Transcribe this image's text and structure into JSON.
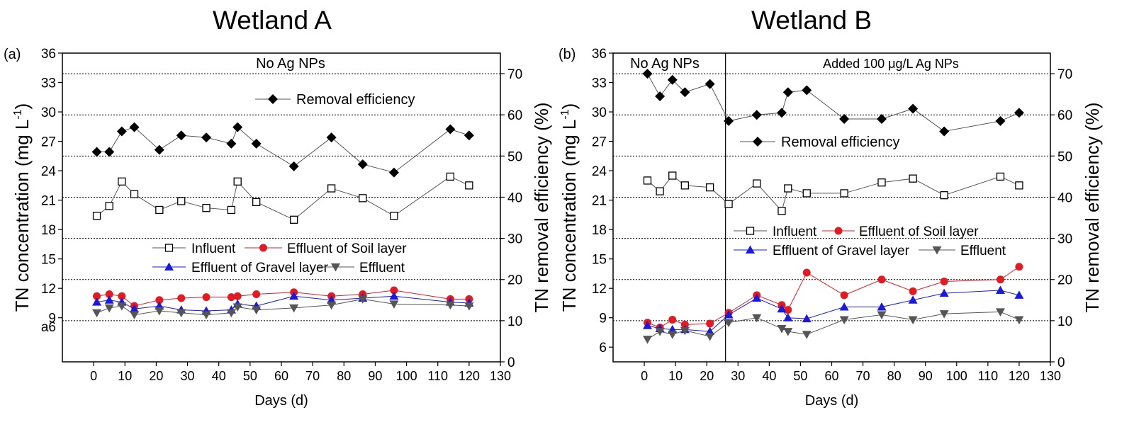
{
  "chart_data": [
    {
      "type": "line",
      "title": "Wetland A",
      "panel_label": "(a)",
      "annotation": "No Ag NPs",
      "stray_tick_label": "a6",
      "xlabel": "Days (d)",
      "ylabel_left": "TN concentration (mg L",
      "ylabel_left_sup": "-1",
      "ylabel_left_end": ")",
      "ylabel_right": "TN removal efficiency (%)",
      "xlim": [
        -10,
        130
      ],
      "xticks": [
        0,
        10,
        20,
        30,
        40,
        50,
        60,
        70,
        80,
        90,
        100,
        110,
        120,
        130
      ],
      "ylim_left": [
        4.5,
        36
      ],
      "yticks_left": [
        9,
        12,
        15,
        18,
        21,
        24,
        27,
        30,
        33,
        36
      ],
      "ylim_right": [
        0,
        75
      ],
      "yticks_right": [
        0,
        10,
        20,
        30,
        40,
        50,
        60,
        70
      ],
      "gridlines_right": [
        10,
        20,
        30,
        40,
        50,
        60,
        70
      ],
      "removal_legend": "Removal efficiency",
      "series_legend": [
        "Influent",
        "Effluent of Soil layer",
        "Effluent of Gravel layer",
        "Effluent"
      ],
      "removal": {
        "name": "Removal efficiency",
        "axis": "right",
        "x": [
          1,
          5,
          9,
          13,
          21,
          28,
          36,
          44,
          46,
          52,
          64,
          76,
          86,
          96,
          114,
          120
        ],
        "y": [
          51,
          51,
          56,
          57,
          51.5,
          55,
          54.5,
          53,
          57,
          53,
          47.5,
          54.5,
          48,
          46,
          56.5,
          55
        ]
      },
      "series": [
        {
          "name": "Influent",
          "axis": "left",
          "x": [
            1,
            5,
            9,
            13,
            21,
            28,
            36,
            44,
            46,
            52,
            64,
            76,
            86,
            96,
            114,
            120
          ],
          "y": [
            19.4,
            20.4,
            22.9,
            21.6,
            20.0,
            20.9,
            20.2,
            20.0,
            22.9,
            20.8,
            19.0,
            22.2,
            21.2,
            19.4,
            23.4,
            22.5
          ]
        },
        {
          "name": "Effluent of Soil layer",
          "axis": "left",
          "x": [
            1,
            5,
            9,
            13,
            21,
            28,
            36,
            44,
            46,
            52,
            64,
            76,
            86,
            96,
            114,
            120
          ],
          "y": [
            11.2,
            11.4,
            11.2,
            10.2,
            10.8,
            11.0,
            11.1,
            11.1,
            11.2,
            11.4,
            11.6,
            11.2,
            11.4,
            11.8,
            10.9,
            10.9
          ]
        },
        {
          "name": "Effluent of Gravel layer",
          "axis": "left",
          "x": [
            1,
            5,
            9,
            13,
            21,
            28,
            36,
            44,
            46,
            52,
            64,
            76,
            86,
            96,
            114,
            120
          ],
          "y": [
            10.6,
            10.8,
            10.6,
            9.9,
            10.2,
            9.8,
            9.7,
            9.8,
            10.4,
            10.2,
            11.2,
            10.8,
            11.0,
            11.2,
            10.6,
            10.5
          ]
        },
        {
          "name": "Effluent",
          "axis": "left",
          "x": [
            1,
            5,
            9,
            13,
            21,
            28,
            36,
            44,
            46,
            52,
            64,
            76,
            86,
            96,
            114,
            120
          ],
          "y": [
            9.5,
            10.0,
            10.2,
            9.3,
            9.7,
            9.5,
            9.3,
            9.5,
            10.1,
            9.8,
            10.0,
            10.3,
            10.9,
            10.4,
            10.3,
            10.2
          ]
        }
      ]
    },
    {
      "type": "line",
      "title": "Wetland B",
      "panel_label": "(b)",
      "annotation": "No Ag NPs",
      "annotation2": "Added 100 μg/L Ag NPs",
      "divider_x": 26,
      "xlabel": "Days (d)",
      "ylabel_left": "TN concentration (mg L",
      "ylabel_left_sup": "-1",
      "ylabel_left_end": ")",
      "ylabel_right": "TN removal efficiency (%)",
      "xlim": [
        -10,
        130
      ],
      "xticks": [
        0,
        10,
        20,
        30,
        40,
        50,
        60,
        70,
        80,
        90,
        100,
        110,
        120,
        130
      ],
      "ylim_left": [
        4.5,
        36
      ],
      "yticks_left": [
        6,
        9,
        12,
        15,
        18,
        21,
        24,
        27,
        30,
        33,
        36
      ],
      "ylim_right": [
        0,
        75
      ],
      "yticks_right": [
        0,
        10,
        20,
        30,
        40,
        50,
        60,
        70
      ],
      "gridlines_right": [
        10,
        20,
        30,
        40,
        50,
        60,
        70
      ],
      "removal_legend": "Removal efficiency",
      "series_legend": [
        "Influent",
        "Effluent of Soil layer",
        "Effluent of Gravel layer",
        "Effluent"
      ],
      "removal": {
        "name": "Removal efficiency",
        "axis": "right",
        "x": [
          1,
          5,
          9,
          13,
          21,
          27,
          36,
          44,
          46,
          52,
          64,
          76,
          86,
          96,
          114,
          120
        ],
        "y": [
          70,
          64.5,
          68.5,
          65.5,
          67.5,
          58.5,
          60,
          60.5,
          65.5,
          66,
          59,
          59,
          61.5,
          56,
          58.5,
          60.5
        ]
      },
      "series": [
        {
          "name": "Influent",
          "axis": "left",
          "x": [
            1,
            5,
            9,
            13,
            21,
            27,
            36,
            44,
            46,
            52,
            64,
            76,
            86,
            96,
            114,
            120
          ],
          "y": [
            23.0,
            21.9,
            23.5,
            22.5,
            22.3,
            20.6,
            22.7,
            19.9,
            22.2,
            21.7,
            21.7,
            22.8,
            23.2,
            21.5,
            23.4,
            22.5
          ]
        },
        {
          "name": "Effluent of Soil layer",
          "axis": "left",
          "x": [
            1,
            5,
            9,
            13,
            21,
            27,
            36,
            44,
            46,
            52,
            64,
            76,
            86,
            96,
            114,
            120
          ],
          "y": [
            8.5,
            8.0,
            8.8,
            8.3,
            8.4,
            9.5,
            11.3,
            10.3,
            9.8,
            13.6,
            11.3,
            12.9,
            11.7,
            12.7,
            12.9,
            14.2
          ]
        },
        {
          "name": "Effluent of Gravel layer",
          "axis": "left",
          "x": [
            1,
            5,
            9,
            13,
            21,
            27,
            36,
            44,
            46,
            52,
            64,
            76,
            86,
            96,
            114,
            120
          ],
          "y": [
            8.2,
            7.9,
            7.8,
            7.8,
            7.6,
            9.3,
            11.0,
            9.9,
            9.0,
            8.9,
            10.1,
            10.1,
            10.8,
            11.5,
            11.8,
            11.3
          ]
        },
        {
          "name": "Effluent",
          "axis": "left",
          "x": [
            1,
            5,
            9,
            13,
            21,
            27,
            36,
            44,
            46,
            52,
            64,
            76,
            86,
            96,
            114,
            120
          ],
          "y": [
            6.8,
            7.6,
            7.3,
            7.7,
            7.1,
            8.5,
            9.0,
            7.9,
            7.6,
            7.3,
            8.8,
            9.3,
            8.8,
            9.4,
            9.6,
            8.8
          ]
        }
      ]
    }
  ],
  "colors": {
    "influent": "#000000",
    "soil": "#e01b24",
    "gravel": "#1a1ad8",
    "effluent": "#555555",
    "removal": "#000000",
    "grid": "#000000",
    "line_soil": "#e01b24",
    "line_gravel": "#1a1ad8",
    "line_dark": "#555555"
  }
}
